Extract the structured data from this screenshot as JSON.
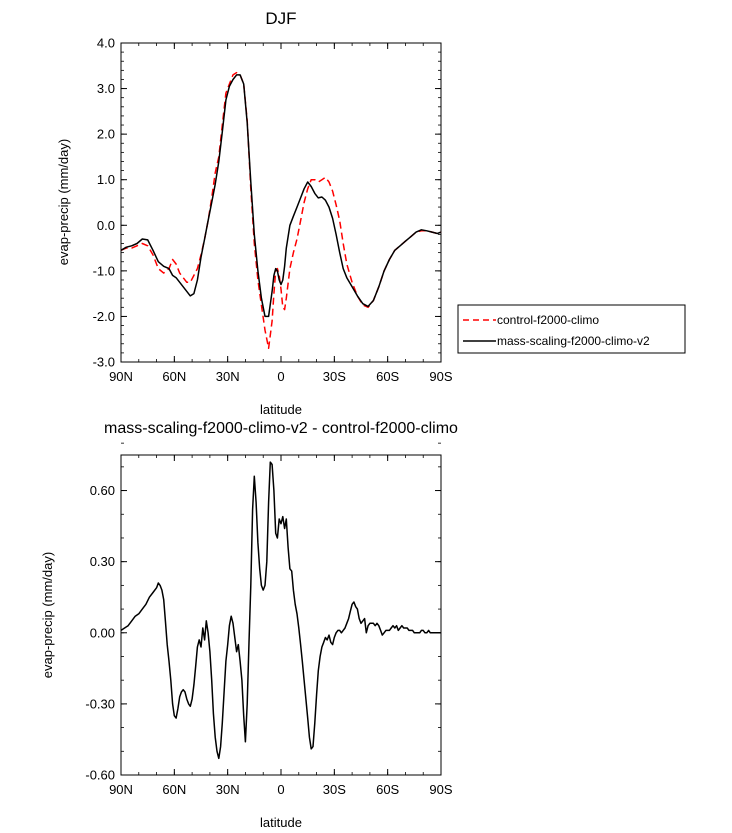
{
  "chart_data": [
    {
      "type": "line",
      "title": "DJF",
      "xlabel": "latitude",
      "ylabel": "evap-precip (mm/day)",
      "xlim": [
        90,
        -90
      ],
      "ylim": [
        -3.0,
        4.0
      ],
      "xticks": [
        90,
        60,
        30,
        0,
        -30,
        -60,
        -90
      ],
      "xtick_labels": [
        "90N",
        "60N",
        "30N",
        "0",
        "30S",
        "60S",
        "90S"
      ],
      "yticks": [
        -3.0,
        -2.0,
        -1.0,
        0.0,
        1.0,
        2.0,
        3.0,
        4.0
      ],
      "ytick_labels": [
        "-3.0",
        "-2.0",
        "-1.0",
        "0.0",
        "1.0",
        "2.0",
        "3.0",
        "4.0"
      ],
      "legend": {
        "position": "right"
      },
      "series": [
        {
          "name": "control-f2000-climo",
          "color": "#ff0000",
          "dash": "dashed",
          "x": [
            90,
            87,
            84,
            81,
            78,
            75,
            72,
            69,
            66,
            63,
            61,
            59,
            57,
            55,
            53,
            51,
            49,
            47,
            45,
            43,
            41,
            39,
            37,
            35,
            33,
            31,
            29,
            27,
            25,
            23,
            21,
            19,
            17,
            15,
            13,
            11,
            9,
            7,
            5,
            4,
            3,
            2,
            1,
            0,
            -1,
            -2,
            -3,
            -5,
            -7,
            -9,
            -11,
            -13,
            -15,
            -17,
            -19,
            -21,
            -23,
            -25,
            -27,
            -29,
            -31,
            -33,
            -35,
            -37,
            -40,
            -43,
            -46,
            -49,
            -52,
            -55,
            -58,
            -61,
            -64,
            -67,
            -70,
            -73,
            -76,
            -79,
            -82,
            -85,
            -88,
            -90
          ],
          "y": [
            -0.55,
            -0.5,
            -0.5,
            -0.45,
            -0.4,
            -0.45,
            -0.65,
            -0.95,
            -1.05,
            -0.95,
            -0.75,
            -0.85,
            -1.05,
            -1.15,
            -1.25,
            -1.25,
            -1.1,
            -0.95,
            -0.65,
            -0.3,
            0.1,
            0.6,
            1.15,
            1.5,
            2.2,
            2.9,
            3.1,
            3.3,
            3.35,
            3.3,
            3.1,
            2.3,
            0.8,
            -0.4,
            -1.2,
            -1.75,
            -2.3,
            -2.7,
            -2.1,
            -1.5,
            -1.0,
            -0.95,
            -1.1,
            -1.4,
            -1.8,
            -1.85,
            -1.6,
            -0.95,
            -0.6,
            -0.3,
            0.1,
            0.5,
            0.8,
            1.0,
            1.0,
            0.95,
            1.0,
            1.05,
            0.95,
            0.75,
            0.45,
            0.1,
            -0.4,
            -0.85,
            -1.25,
            -1.55,
            -1.75,
            -1.8,
            -1.65,
            -1.35,
            -1.0,
            -0.75,
            -0.55,
            -0.45,
            -0.35,
            -0.25,
            -0.15,
            -0.12,
            -0.12,
            -0.15,
            -0.18,
            -0.15
          ]
        },
        {
          "name": "mass-scaling-f2000-climo-v2",
          "color": "#000000",
          "dash": "solid",
          "x": [
            90,
            87,
            84,
            81,
            78,
            75,
            72,
            69,
            66,
            63,
            61,
            59,
            57,
            55,
            53,
            51,
            49,
            47,
            45,
            43,
            41,
            39,
            37,
            35,
            33,
            31,
            29,
            27,
            25,
            23,
            21,
            19,
            17,
            15,
            13,
            11,
            9,
            7,
            5,
            4,
            3,
            2,
            1,
            0,
            -1,
            -2,
            -3,
            -5,
            -7,
            -9,
            -11,
            -13,
            -15,
            -17,
            -19,
            -21,
            -23,
            -25,
            -27,
            -29,
            -31,
            -33,
            -35,
            -37,
            -40,
            -43,
            -46,
            -49,
            -52,
            -55,
            -58,
            -61,
            -64,
            -67,
            -70,
            -73,
            -76,
            -79,
            -82,
            -85,
            -88,
            -90
          ],
          "y": [
            -0.55,
            -0.48,
            -0.45,
            -0.4,
            -0.3,
            -0.32,
            -0.55,
            -0.8,
            -0.9,
            -0.95,
            -1.1,
            -1.15,
            -1.25,
            -1.35,
            -1.45,
            -1.55,
            -1.5,
            -1.2,
            -0.7,
            -0.3,
            0.1,
            0.5,
            0.9,
            1.4,
            2.05,
            2.75,
            3.05,
            3.2,
            3.3,
            3.3,
            3.1,
            2.25,
            0.95,
            -0.2,
            -1.0,
            -1.6,
            -2.0,
            -2.0,
            -1.45,
            -1.1,
            -0.95,
            -1.0,
            -1.2,
            -1.3,
            -1.2,
            -0.9,
            -0.5,
            0.0,
            0.2,
            0.4,
            0.6,
            0.8,
            0.95,
            0.85,
            0.7,
            0.6,
            0.62,
            0.55,
            0.4,
            0.15,
            -0.2,
            -0.6,
            -0.95,
            -1.15,
            -1.35,
            -1.55,
            -1.72,
            -1.78,
            -1.65,
            -1.35,
            -1.0,
            -0.75,
            -0.55,
            -0.45,
            -0.35,
            -0.25,
            -0.15,
            -0.1,
            -0.12,
            -0.15,
            -0.18,
            -0.15
          ]
        }
      ]
    },
    {
      "type": "line",
      "title": "mass-scaling-f2000-climo-v2 - control-f2000-climo",
      "xlabel": "latitude",
      "ylabel": "evap-precip (mm/day)",
      "xlim": [
        90,
        -90
      ],
      "ylim": [
        -0.6,
        0.75
      ],
      "xticks": [
        90,
        60,
        30,
        0,
        -30,
        -60,
        -90
      ],
      "xtick_labels": [
        "90N",
        "60N",
        "30N",
        "0",
        "30S",
        "60S",
        "90S"
      ],
      "yticks": [
        -0.6,
        -0.3,
        0.0,
        0.3,
        0.6
      ],
      "ytick_labels": [
        "-0.60",
        "-0.30",
        "0.00",
        "0.30",
        "0.60"
      ],
      "series": [
        {
          "color": "#000000",
          "dash": "solid",
          "x": [
            90,
            88,
            86,
            84,
            82,
            80,
            78,
            76,
            74,
            72,
            70,
            69,
            68,
            67,
            66,
            65,
            64,
            63,
            62,
            61,
            60,
            59,
            58,
            57,
            56,
            55,
            54,
            53,
            52,
            51,
            50,
            49,
            48,
            47,
            46,
            45,
            44,
            43,
            42,
            41,
            40,
            39,
            38,
            37,
            36,
            35,
            34,
            33,
            32,
            31,
            30,
            29,
            28,
            27,
            26,
            25,
            24,
            23,
            22,
            21,
            20,
            19,
            18,
            17,
            16,
            15,
            14,
            13,
            12,
            11,
            10,
            9,
            8,
            7,
            6,
            5,
            4,
            3,
            2,
            1,
            0,
            -1,
            -2,
            -3,
            -4,
            -5,
            -6,
            -7,
            -8,
            -9,
            -10,
            -11,
            -12,
            -13,
            -14,
            -15,
            -16,
            -17,
            -18,
            -19,
            -20,
            -21,
            -22,
            -23,
            -24,
            -25,
            -26,
            -27,
            -28,
            -29,
            -30,
            -31,
            -32,
            -33,
            -34,
            -35,
            -36,
            -37,
            -38,
            -39,
            -40,
            -41,
            -42,
            -43,
            -44,
            -45,
            -46,
            -47,
            -48,
            -49,
            -50,
            -51,
            -52,
            -53,
            -54,
            -55,
            -56,
            -57,
            -58,
            -59,
            -60,
            -61,
            -62,
            -63,
            -64,
            -65,
            -66,
            -67,
            -68,
            -69,
            -70,
            -71,
            -72,
            -73,
            -74,
            -75,
            -76,
            -77,
            -78,
            -79,
            -80,
            -81,
            -82,
            -83,
            -84,
            -85,
            -86,
            -87,
            -88,
            -89,
            -90
          ],
          "y": [
            0.01,
            0.02,
            0.03,
            0.05,
            0.07,
            0.08,
            0.1,
            0.12,
            0.15,
            0.17,
            0.19,
            0.21,
            0.2,
            0.18,
            0.14,
            0.05,
            -0.05,
            -0.12,
            -0.2,
            -0.3,
            -0.35,
            -0.36,
            -0.32,
            -0.27,
            -0.25,
            -0.24,
            -0.25,
            -0.28,
            -0.3,
            -0.31,
            -0.28,
            -0.22,
            -0.14,
            -0.06,
            -0.03,
            -0.06,
            0.02,
            -0.03,
            0.05,
            0.0,
            -0.08,
            -0.2,
            -0.34,
            -0.44,
            -0.5,
            -0.53,
            -0.48,
            -0.38,
            -0.25,
            -0.12,
            -0.05,
            0.03,
            0.07,
            0.04,
            -0.02,
            -0.08,
            -0.05,
            -0.12,
            -0.2,
            -0.35,
            -0.46,
            -0.3,
            -0.04,
            0.2,
            0.52,
            0.66,
            0.55,
            0.38,
            0.27,
            0.2,
            0.18,
            0.2,
            0.3,
            0.55,
            0.72,
            0.71,
            0.6,
            0.42,
            0.4,
            0.48,
            0.46,
            0.49,
            0.44,
            0.48,
            0.36,
            0.27,
            0.26,
            0.18,
            0.12,
            0.08,
            0.02,
            -0.05,
            -0.12,
            -0.2,
            -0.28,
            -0.36,
            -0.44,
            -0.49,
            -0.48,
            -0.38,
            -0.26,
            -0.16,
            -0.1,
            -0.06,
            -0.04,
            -0.02,
            -0.03,
            -0.01,
            -0.04,
            -0.05,
            -0.02,
            0.0,
            0.01,
            0.01,
            0.0,
            0.01,
            0.02,
            0.04,
            0.06,
            0.09,
            0.12,
            0.13,
            0.11,
            0.1,
            0.06,
            0.04,
            0.05,
            0.06,
            0.0,
            0.03,
            0.04,
            0.04,
            0.04,
            0.03,
            0.04,
            0.03,
            0.01,
            -0.01,
            0.0,
            0.01,
            0.01,
            0.01,
            0.02,
            0.03,
            0.02,
            0.03,
            0.01,
            0.02,
            0.03,
            0.02,
            0.02,
            0.02,
            0.01,
            0.01,
            0.01,
            0.0,
            0.0,
            0.0,
            0.0,
            0.01,
            0.01,
            0.0,
            0.0,
            0.01,
            0.0,
            0.0,
            0.0,
            0.0,
            0.0,
            0.0,
            0.0
          ]
        }
      ]
    }
  ]
}
